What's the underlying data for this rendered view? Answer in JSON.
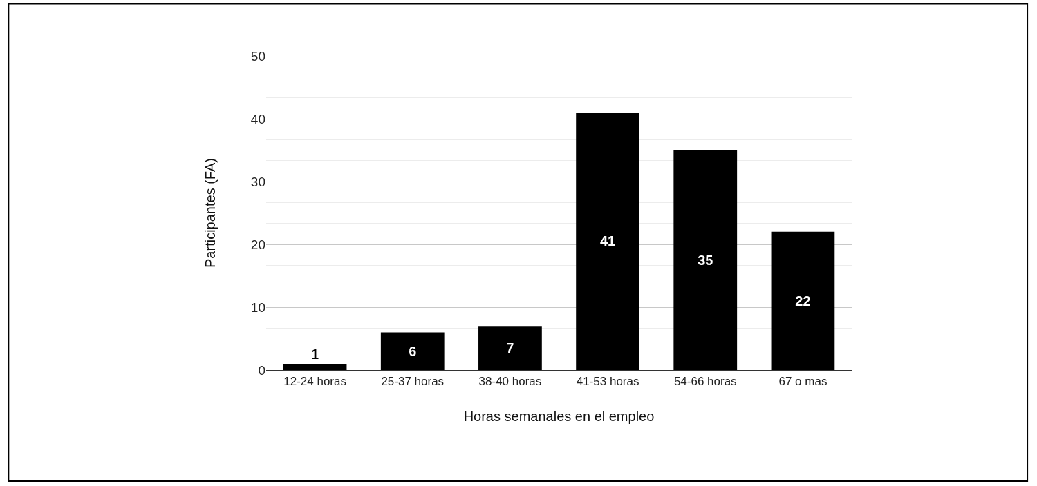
{
  "chart_data": {
    "type": "bar",
    "xlabel": "Horas semanales en el empleo",
    "ylabel": "Participantes (FA)",
    "categories": [
      "12-24 horas",
      "25-37 horas",
      "38-40 horas",
      "41-53 horas",
      "54-66 horas",
      "67 o mas"
    ],
    "values": [
      1,
      6,
      7,
      41,
      35,
      22
    ],
    "color": "#000000",
    "ylim": [
      0,
      50
    ],
    "yticks": [
      0,
      10,
      20,
      30,
      40,
      50
    ],
    "grid": "y",
    "data_labels": true,
    "legend": false
  }
}
